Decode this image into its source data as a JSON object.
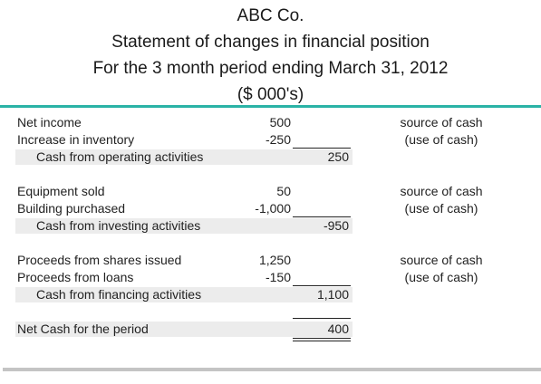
{
  "header": {
    "company": "ABC Co.",
    "statement": "Statement of changes in financial position",
    "period": "For the 3 month period ending March 31, 2012",
    "units": "($ 000's)"
  },
  "operating": {
    "rows": [
      {
        "label": "Net income",
        "amount": "500",
        "note": "source of cash"
      },
      {
        "label": "Increase in inventory",
        "amount": "-250",
        "note": "(use of cash)"
      }
    ],
    "total_label": "Cash from operating activities",
    "total": "250"
  },
  "investing": {
    "rows": [
      {
        "label": "Equipment sold",
        "amount": "50",
        "note": "source of cash"
      },
      {
        "label": "Building purchased",
        "amount": "-1,000",
        "note": "(use of cash)"
      }
    ],
    "total_label": "Cash from investing activities",
    "total": "-950"
  },
  "financing": {
    "rows": [
      {
        "label": "Proceeds from shares issued",
        "amount": "1,250",
        "note": "source of cash"
      },
      {
        "label": "Proceeds from loans",
        "amount": "-150",
        "note": "(use of cash)"
      }
    ],
    "total_label": "Cash from financing activities",
    "total": "1,100"
  },
  "net": {
    "label": "Net Cash for the period",
    "total": "400"
  },
  "colors": {
    "accent_rule": "#2ab3a6",
    "bottom_rule": "#c4c4c4",
    "row_shade": "#ececec"
  }
}
